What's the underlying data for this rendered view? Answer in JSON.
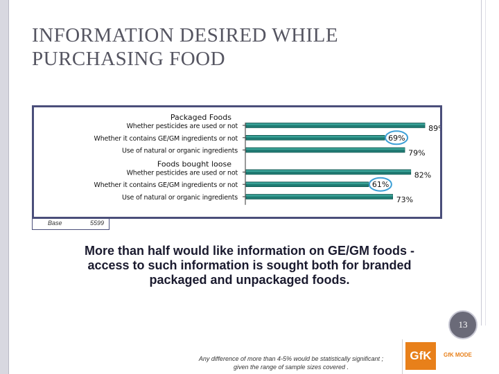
{
  "slide": {
    "title_line1": "INFORMATION DESIRED WHILE",
    "title_line2": "PURCHASING FOOD",
    "caption_line1": "More than half would like information on GE/GM foods  -",
    "caption_line2": "access to such information is sought both for branded",
    "caption_line3": "packaged and unpackaged foods.",
    "page_number": "13",
    "footnote_line1": "Any difference of more than 4-5% would be statistically significant ;",
    "footnote_line2": "given the range of sample sizes covered .",
    "logo": "GfK",
    "logo_text": "GfK MODE"
  },
  "base": {
    "label": "Base",
    "value": "5599"
  },
  "colors": {
    "bar": "#1f7a72",
    "bar_light": "#3da89d",
    "highlight": "#3c9fd6",
    "frame": "#4a4e7a"
  },
  "chart_data": {
    "type": "bar",
    "orientation": "horizontal",
    "groups": [
      {
        "name": "Packaged Foods",
        "categories": [
          "Whether pesticides are used or not",
          "Whether it contains GE/GM ingredients or not",
          "Use of natural or organic ingredients"
        ],
        "values": [
          89,
          69,
          79
        ],
        "value_labels": [
          "89%",
          "69%",
          "79%"
        ]
      },
      {
        "name": "Foods bought loose",
        "categories": [
          "Whether pesticides are used or not",
          "Whether it contains GE/GM ingredients or not",
          "Use of natural or organic ingredients"
        ],
        "values": [
          82,
          61,
          73
        ],
        "value_labels": [
          "82%",
          "61%",
          "73%"
        ]
      }
    ],
    "highlighted": [
      [
        0,
        1
      ],
      [
        1,
        1
      ]
    ],
    "xlim": [
      0,
      100
    ],
    "grid": false
  }
}
